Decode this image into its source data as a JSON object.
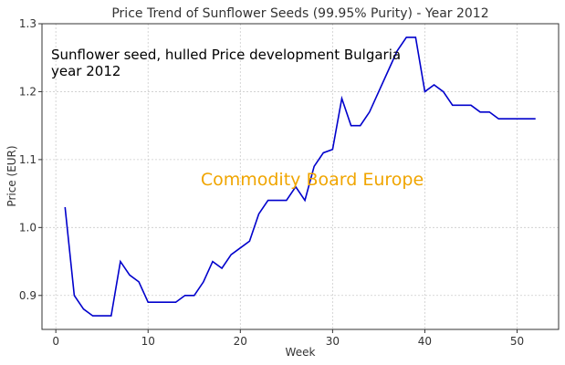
{
  "chart_data": {
    "type": "line",
    "title": "Price Trend of Sunflower Seeds (99.95% Purity) - Year 2012",
    "xlabel": "Week",
    "ylabel": "Price (EUR)",
    "xlim": [
      -1.5,
      54.5
    ],
    "ylim": [
      0.85,
      1.3
    ],
    "xticks": [
      0,
      10,
      20,
      30,
      40,
      50
    ],
    "yticks": [
      0.9,
      1.0,
      1.1,
      1.2,
      1.3
    ],
    "xtick_labels": [
      "0",
      "10",
      "20",
      "30",
      "40",
      "50"
    ],
    "ytick_labels": [
      "0.9",
      "1.0",
      "1.1",
      "1.2",
      "1.3"
    ],
    "grid": true,
    "series": [
      {
        "color": "#0000cc",
        "x": [
          1,
          2,
          3,
          4,
          5,
          6,
          7,
          8,
          9,
          10,
          11,
          12,
          13,
          14,
          15,
          16,
          17,
          18,
          19,
          20,
          21,
          22,
          23,
          24,
          25,
          26,
          27,
          28,
          29,
          30,
          31,
          32,
          33,
          34,
          35,
          36,
          37,
          38,
          39,
          40,
          41,
          42,
          43,
          44,
          45,
          46,
          47,
          48,
          49,
          50,
          51,
          52
        ],
        "y": [
          1.03,
          0.9,
          0.88,
          0.87,
          0.87,
          0.87,
          0.95,
          0.93,
          0.92,
          0.89,
          0.89,
          0.89,
          0.89,
          0.9,
          0.9,
          0.92,
          0.95,
          0.94,
          0.96,
          0.97,
          0.98,
          1.02,
          1.04,
          1.04,
          1.04,
          1.06,
          1.04,
          1.09,
          1.11,
          1.115,
          1.19,
          1.15,
          1.15,
          1.17,
          1.2,
          1.23,
          1.26,
          1.28,
          1.28,
          1.2,
          1.21,
          1.2,
          1.18,
          1.18,
          1.18,
          1.17,
          1.17,
          1.16,
          1.16,
          1.16,
          1.16,
          1.16
        ]
      }
    ],
    "annotation_lines": [
      "Sunflower seed, hulled Price development Bulgaria",
      "year 2012"
    ],
    "watermark": "Commodity Board Europe"
  }
}
